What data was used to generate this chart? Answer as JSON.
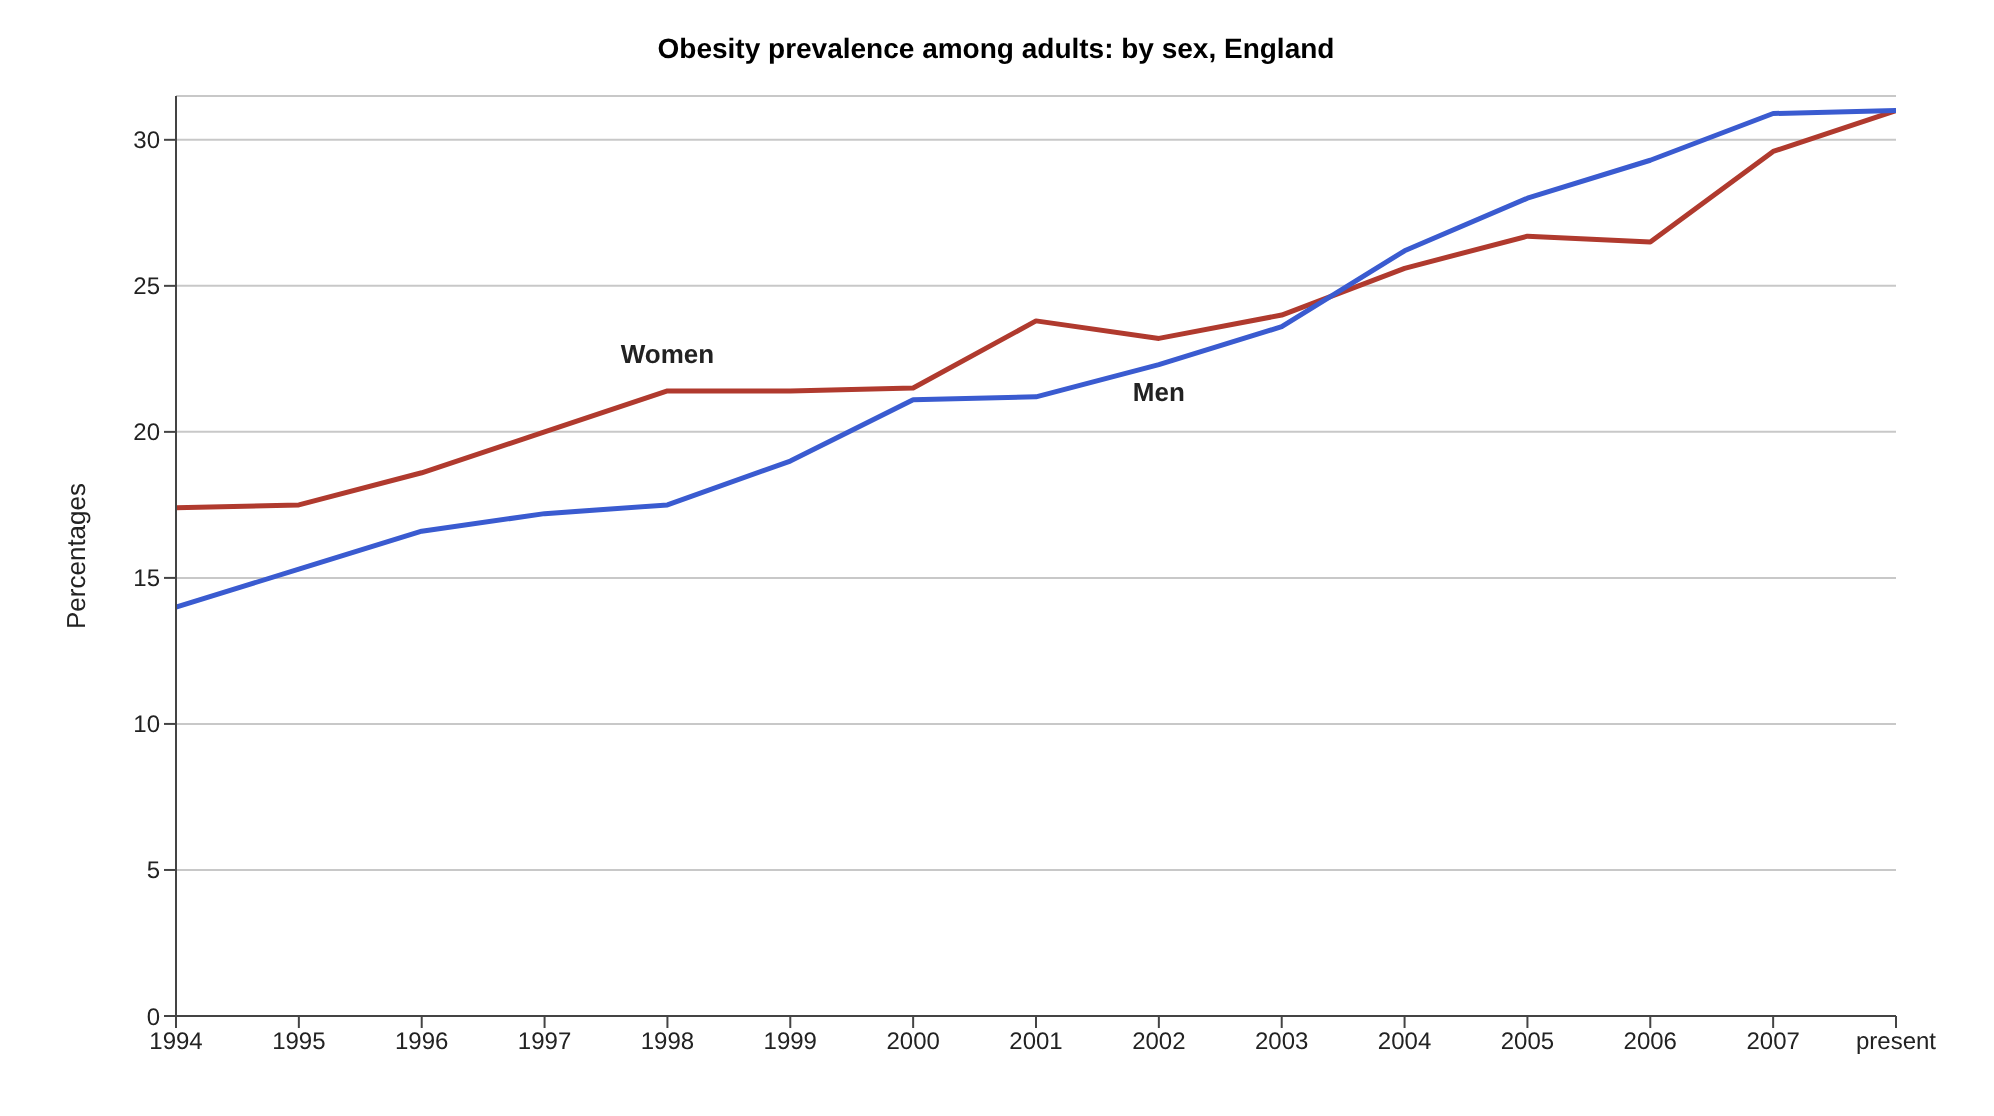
{
  "chart_data": {
    "type": "line",
    "title": "Obesity prevalence among adults: by sex, England",
    "ylabel": "Percentages",
    "categories": [
      "1994",
      "1995",
      "1996",
      "1997",
      "1998",
      "1999",
      "2000",
      "2001",
      "2002",
      "2003",
      "2004",
      "2005",
      "2006",
      "2007",
      "present"
    ],
    "series": [
      {
        "name": "Women",
        "color": "#b03a2e",
        "values": [
          17.4,
          17.5,
          18.6,
          20.0,
          21.4,
          21.4,
          21.5,
          23.8,
          23.2,
          24.0,
          25.6,
          26.7,
          26.5,
          29.6,
          31.0
        ]
      },
      {
        "name": "Men",
        "color": "#3a5bd0",
        "values": [
          14.0,
          15.3,
          16.6,
          17.2,
          17.5,
          19.0,
          21.1,
          21.2,
          22.3,
          23.6,
          26.2,
          28.0,
          29.3,
          30.9,
          31.0
        ]
      }
    ],
    "ylim": [
      0,
      31.5
    ],
    "yticks": [
      0,
      5,
      10,
      15,
      20,
      25,
      30
    ],
    "grid": "y",
    "legend": false,
    "marker": "none",
    "line_style": "solid"
  }
}
